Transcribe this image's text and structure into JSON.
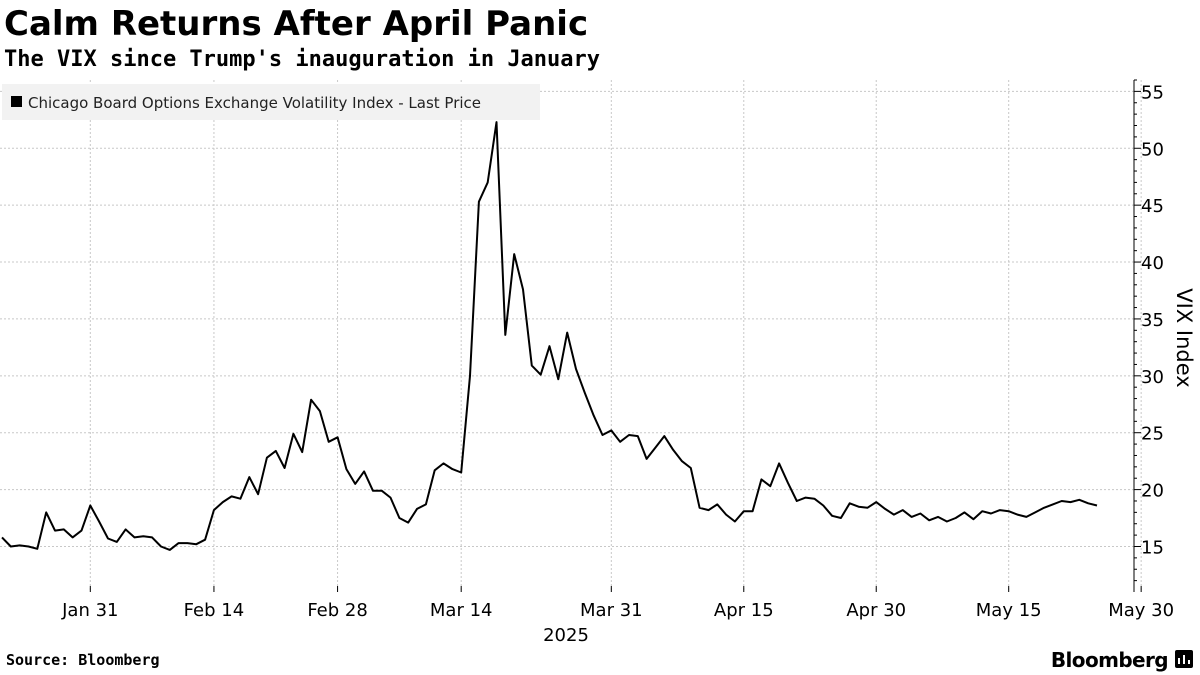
{
  "header": {
    "title": "Calm Returns After April Panic",
    "subtitle": "The VIX since Trump's inauguration in January"
  },
  "footer": {
    "source": "Source: Bloomberg",
    "brand": "Bloomberg"
  },
  "colors": {
    "line": "#000000",
    "grid": "#c8c8c8",
    "legend_bg": "#f2f2f2"
  },
  "chart_data": {
    "type": "line",
    "title": "Calm Returns After April Panic",
    "subtitle": "The VIX since Trump's inauguration in January",
    "xlabel": "2025",
    "ylabel": "VIX Index",
    "y_axis_position": "right",
    "ylim": [
      11,
      56
    ],
    "yticks": [
      15,
      20,
      25,
      30,
      35,
      40,
      45,
      50,
      55
    ],
    "xlim": [
      0,
      124
    ],
    "xticks": [
      {
        "day": 10,
        "label": "Jan 31"
      },
      {
        "day": 24,
        "label": "Feb 14"
      },
      {
        "day": 38,
        "label": "Feb 28"
      },
      {
        "day": 52,
        "label": "Mar 14"
      },
      {
        "day": 69,
        "label": "Mar 31"
      },
      {
        "day": 84,
        "label": "Apr 15"
      },
      {
        "day": 99,
        "label": "Apr 30"
      },
      {
        "day": 114,
        "label": "May 15"
      },
      {
        "day": 129,
        "label": "May 30"
      }
    ],
    "year_label": "2025",
    "grid": true,
    "legend_position": "top-left",
    "series": [
      {
        "name": "Chicago Board Options Exchange Volatility Index - Last Price",
        "x": [
          0,
          1,
          2,
          3,
          4,
          5,
          6,
          7,
          8,
          9,
          10,
          11,
          12,
          13,
          14,
          15,
          16,
          17,
          18,
          19,
          20,
          21,
          22,
          23,
          24,
          25,
          26,
          27,
          28,
          29,
          30,
          31,
          32,
          33,
          34,
          35,
          36,
          37,
          38,
          39,
          40,
          41,
          42,
          43,
          44,
          45,
          46,
          47,
          48,
          49,
          50,
          51,
          52,
          53,
          54,
          55,
          56,
          57,
          58,
          59,
          60,
          61,
          62,
          63,
          64,
          65,
          66,
          67,
          68,
          69,
          70,
          71,
          72,
          73,
          74,
          75,
          76,
          77,
          78,
          79,
          80,
          81,
          82,
          83,
          84,
          85,
          86,
          87,
          88,
          89,
          90,
          91,
          92,
          93,
          94,
          95,
          96,
          97,
          98,
          99,
          100,
          101,
          102,
          103,
          104,
          105,
          106,
          107,
          108,
          109,
          110,
          111,
          112,
          113,
          114,
          115,
          116,
          117,
          118,
          119,
          120,
          121,
          122,
          123,
          124
        ],
        "values": [
          15.8,
          15.0,
          15.1,
          15.0,
          14.8,
          18.0,
          16.4,
          16.5,
          15.8,
          16.4,
          18.6,
          17.2,
          15.7,
          15.4,
          16.5,
          15.8,
          15.9,
          15.8,
          15.0,
          14.7,
          15.3,
          15.3,
          15.2,
          15.6,
          18.2,
          18.9,
          19.4,
          19.2,
          21.1,
          19.6,
          22.8,
          23.4,
          21.9,
          24.9,
          23.3,
          27.9,
          26.9,
          24.2,
          24.6,
          21.8,
          20.5,
          21.6,
          19.9,
          19.9,
          19.3,
          17.5,
          17.1,
          18.3,
          18.7,
          21.7,
          22.3,
          21.8,
          21.5,
          30.0,
          45.3,
          47.0,
          52.3,
          33.6,
          40.7,
          37.6,
          30.9,
          30.1,
          32.6,
          29.7,
          33.8,
          30.6,
          28.5,
          26.5,
          24.8,
          25.2,
          24.2,
          24.8,
          24.7,
          22.7,
          23.7,
          24.7,
          23.5,
          22.5,
          21.9,
          18.4,
          18.2,
          18.7,
          17.8,
          17.2,
          18.1,
          18.1,
          20.9,
          20.3,
          22.3,
          20.6,
          19.0,
          19.3,
          19.2,
          18.6,
          17.7,
          17.5,
          18.8,
          18.5,
          18.4,
          18.9,
          18.3,
          17.8,
          18.2,
          17.6,
          17.9,
          17.3,
          17.6,
          17.2,
          17.5,
          18.0,
          17.4,
          18.1,
          17.9,
          18.2,
          18.1,
          17.8,
          17.6,
          18.0,
          18.4,
          18.7,
          19.0,
          18.9,
          19.1,
          18.8,
          18.6
        ]
      }
    ]
  }
}
